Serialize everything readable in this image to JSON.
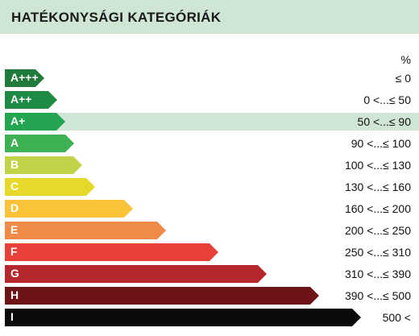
{
  "header": {
    "title": "HATÉKONYSÁGI KATEGÓRIÁK"
  },
  "unit": "%",
  "highlight_index": 2,
  "rows": [
    {
      "label": "A+++",
      "range": "≤ 0",
      "color": "#1f7a3c",
      "level": 0.095
    },
    {
      "label": "A++",
      "range": "0 <...≤ 50",
      "color": "#1f8a45",
      "level": 0.125
    },
    {
      "label": "A+",
      "range": "50 <...≤ 90",
      "color": "#23a552",
      "level": 0.145
    },
    {
      "label": "A",
      "range": "90 <...≤ 100",
      "color": "#3db153",
      "level": 0.165
    },
    {
      "label": "B",
      "range": "100 <...≤ 130",
      "color": "#c2d34a",
      "level": 0.185
    },
    {
      "label": "C",
      "range": "130 <...≤ 160",
      "color": "#e6d92b",
      "level": 0.215
    },
    {
      "label": "D",
      "range": "160 <...≤ 200",
      "color": "#fbc33a",
      "level": 0.305
    },
    {
      "label": "E",
      "range": "200 <...≤ 250",
      "color": "#f08a48",
      "level": 0.385
    },
    {
      "label": "F",
      "range": "250 <...≤ 310",
      "color": "#e8413a",
      "level": 0.51
    },
    {
      "label": "G",
      "range": "310 <...≤ 390",
      "color": "#b5262d",
      "level": 0.625
    },
    {
      "label": "H",
      "range": "390 <...≤ 500",
      "color": "#6d1419",
      "level": 0.75
    },
    {
      "label": "I",
      "range": "500 <",
      "color": "#0b0b0b",
      "level": 0.85
    }
  ]
}
